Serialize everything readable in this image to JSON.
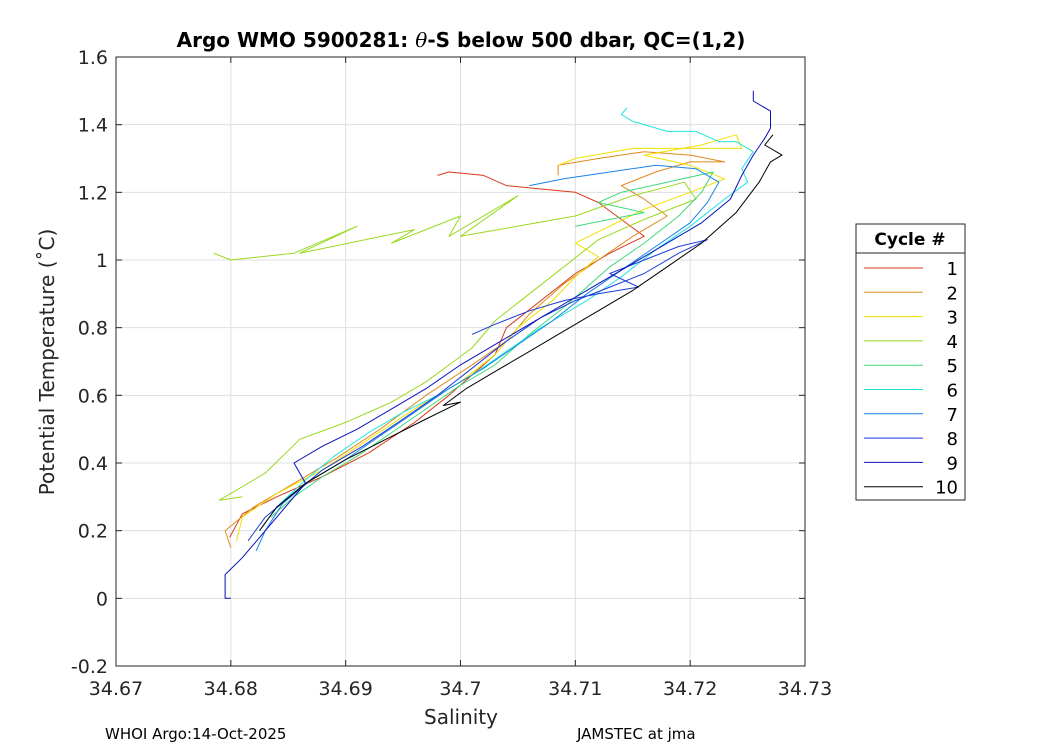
{
  "chart_data": {
    "type": "line",
    "title_prefix": "Argo WMO 5900281: ",
    "title_theta": "θ",
    "title_suffix": "-S below 500 dbar,  QC=(1,2)",
    "xlabel": "Salinity",
    "ylabel": "Potential Temperature (˚C)",
    "xlim": [
      34.67,
      34.73
    ],
    "ylim": [
      -0.2,
      1.6
    ],
    "grid": true,
    "xticks": [
      "34.67",
      "34.68",
      "34.69",
      "34.7",
      "34.71",
      "34.72",
      "34.73"
    ],
    "yticks": [
      "-0.2",
      "0",
      "0.2",
      "0.4",
      "0.6",
      "0.8",
      "1",
      "1.2",
      "1.4",
      "1.6"
    ],
    "legend": {
      "title": "Cycle #",
      "placement": "outside-right"
    },
    "series": [
      {
        "name": "1",
        "color": "#d93a1a",
        "points": [
          [
            34.6799,
            0.18
          ],
          [
            34.681,
            0.25
          ],
          [
            34.684,
            0.3
          ],
          [
            34.688,
            0.36
          ],
          [
            34.692,
            0.43
          ],
          [
            34.696,
            0.52
          ],
          [
            34.699,
            0.6
          ],
          [
            34.701,
            0.66
          ],
          [
            34.703,
            0.72
          ],
          [
            34.704,
            0.8
          ],
          [
            34.707,
            0.88
          ],
          [
            34.71,
            0.96
          ],
          [
            34.713,
            1.02
          ],
          [
            34.716,
            1.07
          ],
          [
            34.714,
            1.12
          ],
          [
            34.712,
            1.17
          ],
          [
            34.71,
            1.2
          ],
          [
            34.707,
            1.21
          ],
          [
            34.704,
            1.22
          ],
          [
            34.702,
            1.25
          ],
          [
            34.699,
            1.26
          ],
          [
            34.698,
            1.25
          ]
        ]
      },
      {
        "name": "2",
        "color": "#e08a1f",
        "points": [
          [
            34.68,
            0.15
          ],
          [
            34.6795,
            0.2
          ],
          [
            34.682,
            0.27
          ],
          [
            34.685,
            0.33
          ],
          [
            34.689,
            0.41
          ],
          [
            34.693,
            0.5
          ],
          [
            34.697,
            0.6
          ],
          [
            34.701,
            0.69
          ],
          [
            34.704,
            0.76
          ],
          [
            34.706,
            0.84
          ],
          [
            34.709,
            0.93
          ],
          [
            34.712,
            1.0
          ],
          [
            34.715,
            1.07
          ],
          [
            34.718,
            1.13
          ],
          [
            34.716,
            1.18
          ],
          [
            34.714,
            1.22
          ],
          [
            34.717,
            1.26
          ],
          [
            34.72,
            1.29
          ],
          [
            34.723,
            1.29
          ],
          [
            34.72,
            1.31
          ],
          [
            34.716,
            1.32
          ],
          [
            34.712,
            1.3
          ],
          [
            34.7085,
            1.28
          ],
          [
            34.7085,
            1.25
          ]
        ]
      },
      {
        "name": "3",
        "color": "#f0e000",
        "points": [
          [
            34.6805,
            0.17
          ],
          [
            34.681,
            0.24
          ],
          [
            34.684,
            0.31
          ],
          [
            34.688,
            0.38
          ],
          [
            34.692,
            0.47
          ],
          [
            34.696,
            0.56
          ],
          [
            34.7,
            0.64
          ],
          [
            34.703,
            0.72
          ],
          [
            34.705,
            0.8
          ],
          [
            34.708,
            0.88
          ],
          [
            34.71,
            0.95
          ],
          [
            34.712,
            1.01
          ],
          [
            34.71,
            1.05
          ],
          [
            34.713,
            1.1
          ],
          [
            34.716,
            1.15
          ],
          [
            34.72,
            1.2
          ],
          [
            34.723,
            1.24
          ],
          [
            34.72,
            1.28
          ],
          [
            34.716,
            1.31
          ],
          [
            34.721,
            1.34
          ],
          [
            34.724,
            1.37
          ],
          [
            34.7245,
            1.33
          ],
          [
            34.721,
            1.33
          ],
          [
            34.715,
            1.33
          ],
          [
            34.71,
            1.3
          ],
          [
            34.7085,
            1.28
          ]
        ]
      },
      {
        "name": "4",
        "color": "#9ad81f",
        "points": [
          [
            34.6785,
            1.02
          ],
          [
            34.68,
            1.0
          ],
          [
            34.6855,
            1.02
          ],
          [
            34.691,
            1.1
          ],
          [
            34.686,
            1.02
          ],
          [
            34.696,
            1.09
          ],
          [
            34.694,
            1.05
          ],
          [
            34.7,
            1.13
          ],
          [
            34.699,
            1.07
          ],
          [
            34.705,
            1.19
          ],
          [
            34.7,
            1.07
          ],
          [
            34.71,
            1.13
          ],
          [
            34.715,
            1.19
          ],
          [
            34.7195,
            1.23
          ],
          [
            34.7205,
            1.18
          ],
          [
            34.716,
            1.12
          ],
          [
            34.712,
            1.06
          ],
          [
            34.709,
            0.98
          ],
          [
            34.706,
            0.9
          ],
          [
            34.703,
            0.82
          ],
          [
            34.701,
            0.74
          ],
          [
            34.697,
            0.64
          ],
          [
            34.694,
            0.58
          ],
          [
            34.69,
            0.52
          ],
          [
            34.686,
            0.47
          ],
          [
            34.683,
            0.37
          ],
          [
            34.679,
            0.29
          ],
          [
            34.681,
            0.3
          ]
        ]
      },
      {
        "name": "5",
        "color": "#3fd97a",
        "points": [
          [
            34.6835,
            0.24
          ],
          [
            34.6855,
            0.3
          ],
          [
            34.688,
            0.36
          ],
          [
            34.691,
            0.42
          ],
          [
            34.694,
            0.49
          ],
          [
            34.697,
            0.56
          ],
          [
            34.7,
            0.63
          ],
          [
            34.703,
            0.69
          ],
          [
            34.706,
            0.78
          ],
          [
            34.709,
            0.86
          ],
          [
            34.711,
            0.92
          ],
          [
            34.713,
            0.98
          ],
          [
            34.716,
            1.05
          ],
          [
            34.719,
            1.13
          ],
          [
            34.721,
            1.2
          ],
          [
            34.722,
            1.26
          ],
          [
            34.718,
            1.23
          ],
          [
            34.714,
            1.2
          ],
          [
            34.712,
            1.17
          ],
          [
            34.716,
            1.14
          ],
          [
            34.71,
            1.1
          ]
        ]
      },
      {
        "name": "6",
        "color": "#1ee6e0",
        "points": [
          [
            34.6825,
            0.2
          ],
          [
            34.684,
            0.27
          ],
          [
            34.6865,
            0.35
          ],
          [
            34.689,
            0.42
          ],
          [
            34.692,
            0.49
          ],
          [
            34.695,
            0.55
          ],
          [
            34.698,
            0.6
          ],
          [
            34.701,
            0.66
          ],
          [
            34.704,
            0.73
          ],
          [
            34.707,
            0.8
          ],
          [
            34.711,
            0.88
          ],
          [
            34.714,
            0.95
          ],
          [
            34.717,
            1.03
          ],
          [
            34.72,
            1.1
          ],
          [
            34.723,
            1.18
          ],
          [
            34.725,
            1.23
          ],
          [
            34.7245,
            1.27
          ],
          [
            34.7255,
            1.32
          ],
          [
            34.724,
            1.35
          ],
          [
            34.7225,
            1.35
          ],
          [
            34.7205,
            1.38
          ],
          [
            34.718,
            1.38
          ],
          [
            34.715,
            1.41
          ],
          [
            34.714,
            1.43
          ],
          [
            34.7145,
            1.45
          ]
        ]
      },
      {
        "name": "7",
        "color": "#1a84e6",
        "points": [
          [
            34.6822,
            0.14
          ],
          [
            34.683,
            0.2
          ],
          [
            34.6845,
            0.28
          ],
          [
            34.687,
            0.35
          ],
          [
            34.69,
            0.41
          ],
          [
            34.693,
            0.48
          ],
          [
            34.696,
            0.55
          ],
          [
            34.699,
            0.62
          ],
          [
            34.702,
            0.68
          ],
          [
            34.705,
            0.75
          ],
          [
            34.708,
            0.82
          ],
          [
            34.711,
            0.9
          ],
          [
            34.714,
            0.97
          ],
          [
            34.717,
            1.04
          ],
          [
            34.72,
            1.11
          ],
          [
            34.7215,
            1.17
          ],
          [
            34.7225,
            1.23
          ],
          [
            34.7205,
            1.27
          ],
          [
            34.717,
            1.28
          ],
          [
            34.713,
            1.26
          ],
          [
            34.709,
            1.24
          ],
          [
            34.706,
            1.22
          ]
        ]
      },
      {
        "name": "8",
        "color": "#1a3adb",
        "points": [
          [
            34.6815,
            0.17
          ],
          [
            34.683,
            0.24
          ],
          [
            34.6855,
            0.31
          ],
          [
            34.688,
            0.38
          ],
          [
            34.6915,
            0.45
          ],
          [
            34.695,
            0.53
          ],
          [
            34.698,
            0.6
          ],
          [
            34.701,
            0.68
          ],
          [
            34.704,
            0.76
          ],
          [
            34.707,
            0.83
          ],
          [
            34.71,
            0.88
          ],
          [
            34.713,
            0.92
          ],
          [
            34.716,
            0.96
          ],
          [
            34.719,
            1.02
          ],
          [
            34.7215,
            1.06
          ],
          [
            34.719,
            1.04
          ],
          [
            34.716,
            1.0
          ],
          [
            34.713,
            0.96
          ],
          [
            34.7155,
            0.92
          ],
          [
            34.712,
            0.9
          ],
          [
            34.709,
            0.88
          ],
          [
            34.706,
            0.85
          ],
          [
            34.703,
            0.81
          ],
          [
            34.701,
            0.78
          ]
        ]
      },
      {
        "name": "9",
        "color": "#0a10b8",
        "points": [
          [
            34.68,
            0.0
          ],
          [
            34.6795,
            0.0
          ],
          [
            34.6795,
            0.07
          ],
          [
            34.681,
            0.12
          ],
          [
            34.683,
            0.2
          ],
          [
            34.685,
            0.28
          ],
          [
            34.6865,
            0.34
          ],
          [
            34.6855,
            0.4
          ],
          [
            34.688,
            0.45
          ],
          [
            34.691,
            0.5
          ],
          [
            34.694,
            0.56
          ],
          [
            34.697,
            0.62
          ],
          [
            34.7,
            0.69
          ],
          [
            34.703,
            0.75
          ],
          [
            34.706,
            0.81
          ],
          [
            34.709,
            0.87
          ],
          [
            34.712,
            0.93
          ],
          [
            34.715,
            0.99
          ],
          [
            34.718,
            1.05
          ],
          [
            34.721,
            1.11
          ],
          [
            34.7235,
            1.18
          ],
          [
            34.7245,
            1.25
          ],
          [
            34.7255,
            1.31
          ],
          [
            34.7265,
            1.36
          ],
          [
            34.727,
            1.39
          ],
          [
            34.727,
            1.44
          ],
          [
            34.7255,
            1.47
          ],
          [
            34.7255,
            1.5
          ]
        ]
      },
      {
        "name": "10",
        "color": "#000000",
        "points": [
          [
            34.6825,
            0.2
          ],
          [
            34.684,
            0.27
          ],
          [
            34.6865,
            0.34
          ],
          [
            34.69,
            0.41
          ],
          [
            34.6935,
            0.47
          ],
          [
            34.697,
            0.53
          ],
          [
            34.7,
            0.58
          ],
          [
            34.6985,
            0.57
          ],
          [
            34.7005,
            0.62
          ],
          [
            34.703,
            0.67
          ],
          [
            34.706,
            0.73
          ],
          [
            34.709,
            0.79
          ],
          [
            34.712,
            0.85
          ],
          [
            34.715,
            0.91
          ],
          [
            34.718,
            0.98
          ],
          [
            34.721,
            1.05
          ],
          [
            34.724,
            1.14
          ],
          [
            34.726,
            1.23
          ],
          [
            34.727,
            1.29
          ],
          [
            34.728,
            1.31
          ],
          [
            34.7265,
            1.34
          ],
          [
            34.7272,
            1.37
          ]
        ]
      }
    ]
  },
  "footer": {
    "left": "WHOI Argo:14-Oct-2025",
    "right": "JAMSTEC at jma"
  }
}
